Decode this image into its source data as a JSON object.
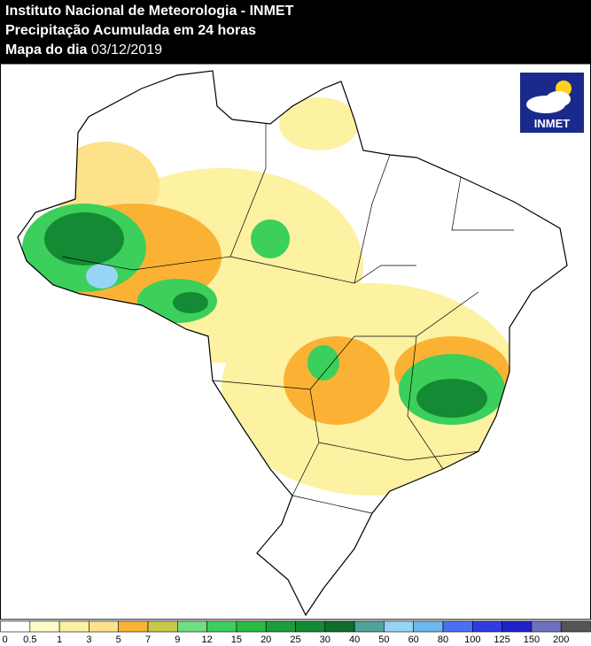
{
  "header": {
    "line1": "Instituto Nacional de Meteorologia - INMET",
    "line2": "Precipitação Acumulada em 24 horas",
    "line3_label": "Mapa do dia",
    "line3_date": "03/12/2019"
  },
  "logo": {
    "text": "INMET"
  },
  "legend": {
    "items": [
      {
        "label": 0,
        "color": "#ffffff"
      },
      {
        "label": 0.5,
        "color": "#fffbc8"
      },
      {
        "label": 1,
        "color": "#fdf1a2"
      },
      {
        "label": 3,
        "color": "#fde28a"
      },
      {
        "label": 5,
        "color": "#fbb234"
      },
      {
        "label": 7,
        "color": "#c8c84a"
      },
      {
        "label": 9,
        "color": "#6ee083"
      },
      {
        "label": 12,
        "color": "#3ccf5b"
      },
      {
        "label": 15,
        "color": "#29bb44"
      },
      {
        "label": 20,
        "color": "#1b9e3a"
      },
      {
        "label": 25,
        "color": "#138a33"
      },
      {
        "label": 30,
        "color": "#0e6e2a"
      },
      {
        "label": 40,
        "color": "#4ea39a"
      },
      {
        "label": 50,
        "color": "#98d4f6"
      },
      {
        "label": 60,
        "color": "#6cb8f0"
      },
      {
        "label": 80,
        "color": "#4a6ff0"
      },
      {
        "label": 100,
        "color": "#2f3de0"
      },
      {
        "label": 125,
        "color": "#1e22c8"
      },
      {
        "label": 150,
        "color": "#7070c0"
      },
      {
        "label": 200,
        "color": "#555555"
      }
    ]
  }
}
